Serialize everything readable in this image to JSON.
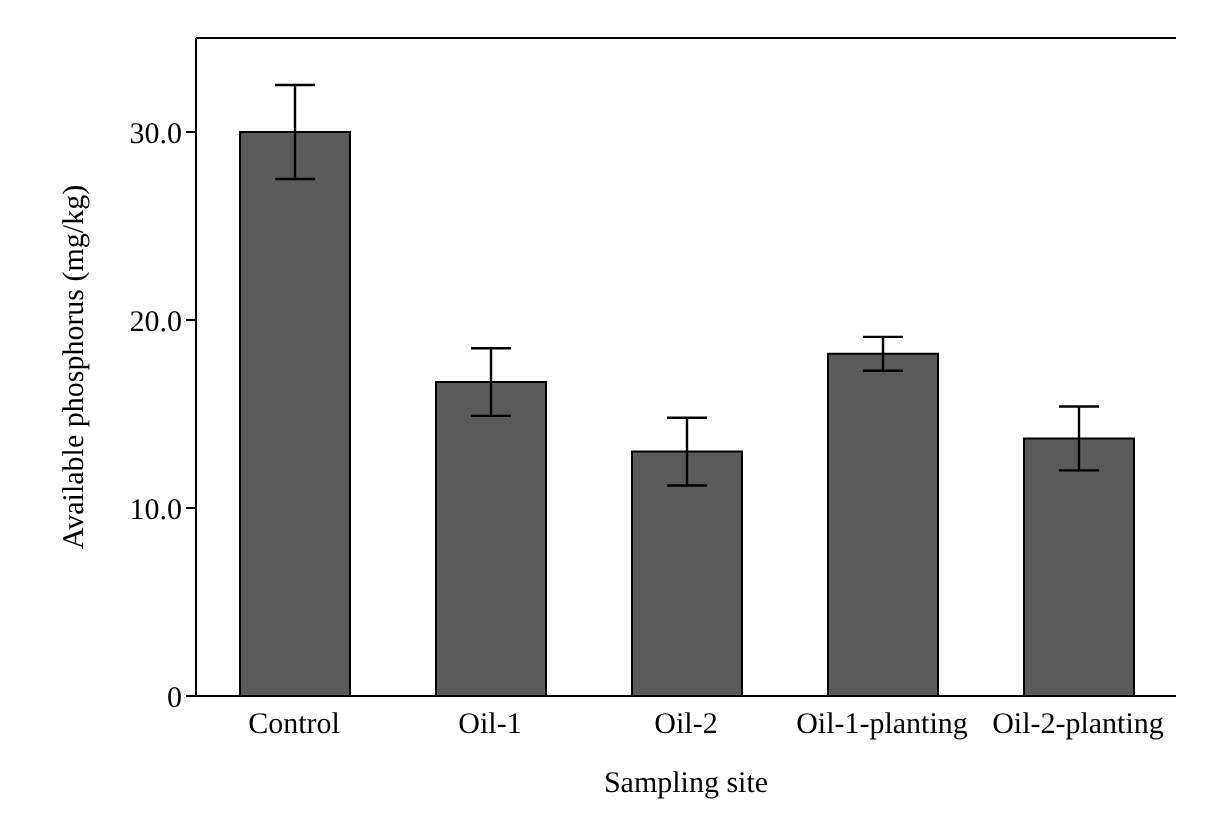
{
  "chart_data": {
    "type": "bar",
    "xlabel": "Sampling site",
    "ylabel": "Available phosphorus (mg/kg)",
    "categories": [
      "Control",
      "Oil-1",
      "Oil-2",
      "Oil-1-planting",
      "Oil-2-planting"
    ],
    "values": [
      30.0,
      16.7,
      13.0,
      18.2,
      13.7
    ],
    "errors": [
      2.5,
      1.8,
      1.8,
      0.9,
      1.7
    ],
    "color": "#5a5a5a",
    "ylim": [
      0,
      35
    ],
    "yticks": [
      0,
      {
        "value": 10,
        "label": "10.0"
      },
      {
        "value": 20,
        "label": "20.0"
      },
      {
        "value": 30,
        "label": "30.0"
      }
    ],
    "grid": false,
    "legend": false
  }
}
